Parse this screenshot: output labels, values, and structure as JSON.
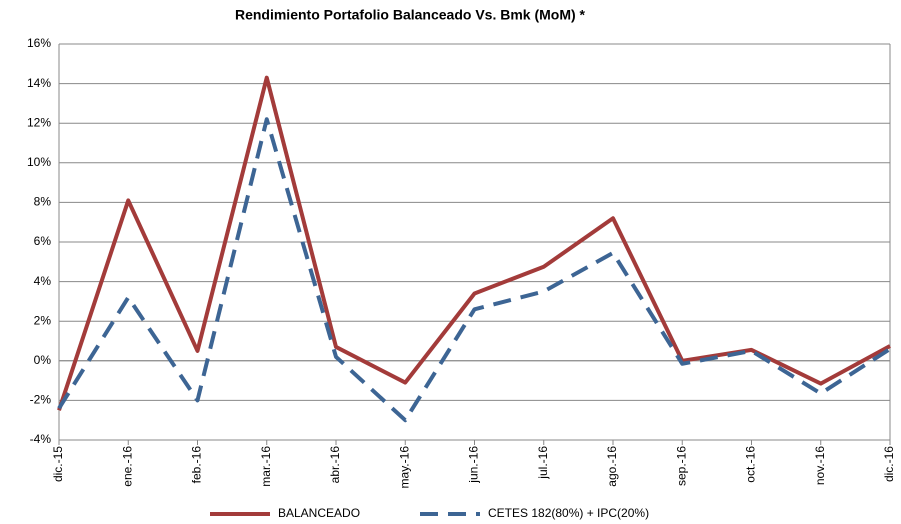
{
  "chart_data": {
    "type": "line",
    "title": "Rendimiento Portafolio Balanceado Vs. Bmk (MoM) *",
    "categories": [
      "dic.-15",
      "ene.-16",
      "feb.-16",
      "mar.-16",
      "abr.-16",
      "may.-16",
      "jun.-16",
      "jul.-16",
      "ago.-16",
      "sep.-16",
      "oct.-16",
      "nov.-16",
      "dic.-16"
    ],
    "series": [
      {
        "name": "BALANCEADO",
        "color": "#a33b3a",
        "style": "solid",
        "values": [
          -2.5,
          8.1,
          0.5,
          14.3,
          0.7,
          -1.1,
          3.4,
          4.75,
          7.2,
          0.0,
          0.55,
          -1.15,
          0.75
        ]
      },
      {
        "name": "CETES 182(80%) + IPC(20%)",
        "color": "#3d6594",
        "style": "dashed",
        "values": [
          -2.4,
          3.2,
          -2.0,
          12.2,
          0.2,
          -3.0,
          2.6,
          3.5,
          5.45,
          -0.15,
          0.5,
          -1.65,
          0.6
        ]
      }
    ],
    "ylim": [
      -4,
      16
    ],
    "yticks": [
      {
        "value": -4,
        "label": "-4%"
      },
      {
        "value": -2,
        "label": "-2%"
      },
      {
        "value": 0,
        "label": "0%"
      },
      {
        "value": 2,
        "label": "2%"
      },
      {
        "value": 4,
        "label": "4%"
      },
      {
        "value": 6,
        "label": "6%"
      },
      {
        "value": 8,
        "label": "8%"
      },
      {
        "value": 10,
        "label": "10%"
      },
      {
        "value": 12,
        "label": "12%"
      },
      {
        "value": 14,
        "label": "14%"
      },
      {
        "value": 16,
        "label": "16%"
      }
    ],
    "grid": true,
    "legend": "bottom"
  }
}
